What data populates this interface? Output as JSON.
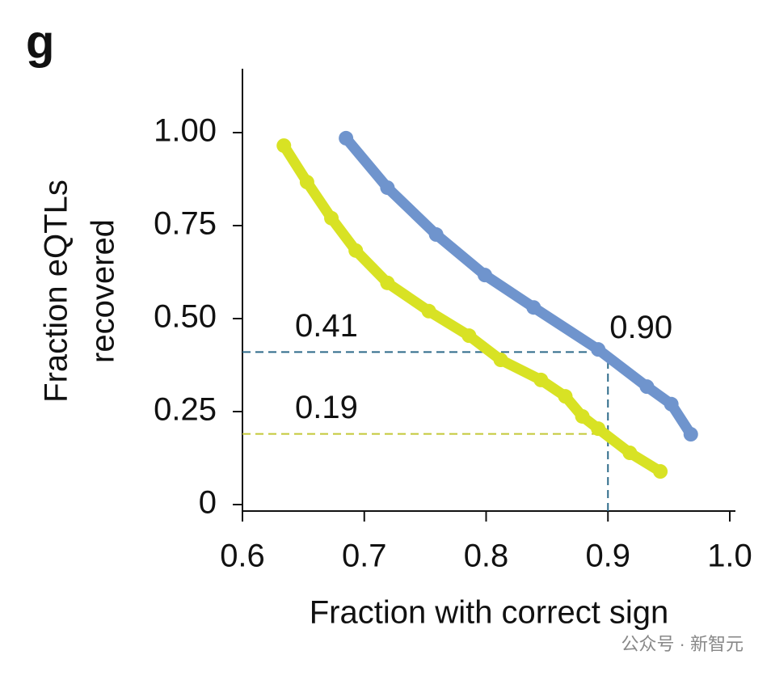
{
  "chart_data": {
    "type": "line",
    "panel_label": "g",
    "x_label": "Fraction with correct sign",
    "y_label": [
      "Fraction eQTLs",
      "recovered"
    ],
    "xlim": [
      0.6,
      1.0
    ],
    "ylim": [
      0,
      1.17
    ],
    "xticks": [
      0.6,
      0.7,
      0.8,
      0.9,
      {
        "value": 1.0,
        "label": "1.0"
      }
    ],
    "yticks": [
      0,
      0.25,
      {
        "value": 0.5,
        "label": "0.50"
      },
      0.75,
      {
        "value": 1.0,
        "label": "1.00"
      }
    ],
    "series": [
      {
        "color": "#6f94cd",
        "x": [
          0.685,
          0.719,
          0.759,
          0.799,
          0.839,
          0.892,
          0.932,
          0.952,
          0.968
        ],
        "values": [
          0.985,
          0.852,
          0.726,
          0.617,
          0.53,
          0.417,
          0.317,
          0.27,
          0.189
        ]
      },
      {
        "color": "#d8e224",
        "x": [
          0.634,
          0.653,
          0.673,
          0.693,
          0.719,
          0.753,
          0.786,
          0.812,
          0.845,
          0.865,
          0.879,
          0.892,
          0.918,
          0.943
        ],
        "values": [
          0.965,
          0.867,
          0.77,
          0.683,
          0.596,
          0.52,
          0.454,
          0.389,
          0.335,
          0.291,
          0.237,
          0.204,
          0.139,
          0.089
        ]
      }
    ],
    "reference_lines": [
      {
        "y": 0.41,
        "x": 0.9,
        "label": "0.41",
        "color": "#2f6b8a"
      },
      {
        "y": 0.19,
        "x": 0.9,
        "label": "0.19",
        "color": "#c3c838"
      }
    ],
    "vertical_reference": {
      "x": 0.9,
      "y": 0.41,
      "label": "0.90",
      "color": "#2f6b8a"
    },
    "watermark": "公众号 · 新智元"
  }
}
